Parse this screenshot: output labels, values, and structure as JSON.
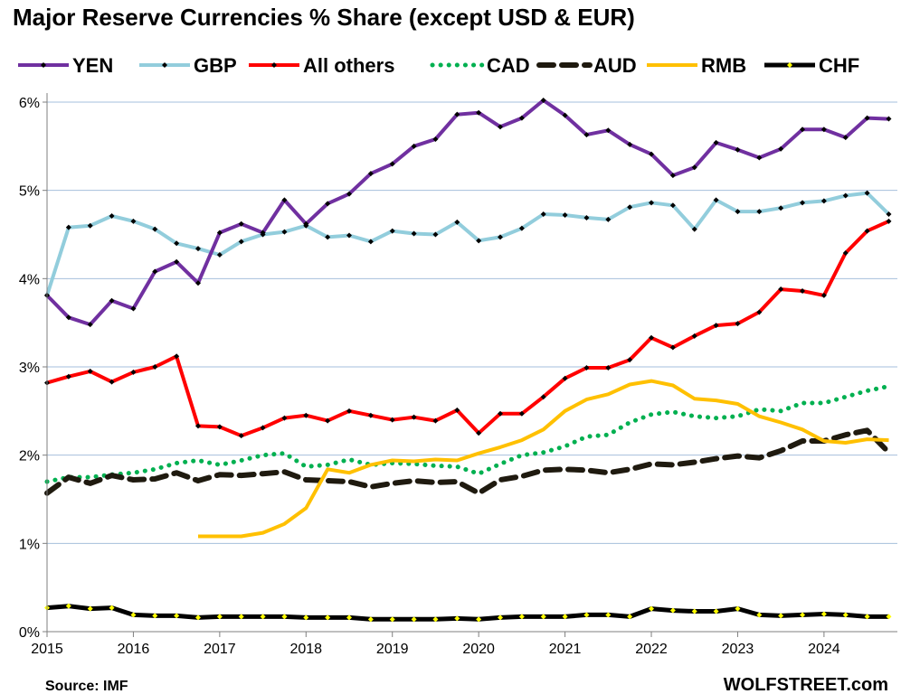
{
  "chart_data": {
    "type": "line",
    "title": "Major Reserve Currencies % Share (except USD & EUR)",
    "source": "Source: IMF",
    "brand": "WOLFSTREET.com",
    "ylim": [
      0,
      6
    ],
    "xlim": [
      2015,
      2024.85
    ],
    "y_ticks": [
      0,
      1,
      2,
      3,
      4,
      5,
      6
    ],
    "y_tick_labels": [
      "0%",
      "1%",
      "2%",
      "3%",
      "4%",
      "5%",
      "6%"
    ],
    "x_ticks": [
      2015,
      2016,
      2017,
      2018,
      2019,
      2020,
      2021,
      2022,
      2023,
      2024
    ],
    "x_tick_labels": [
      "2015",
      "2016",
      "2017",
      "2018",
      "2019",
      "2020",
      "2021",
      "2022",
      "2023",
      "2024"
    ],
    "grid": true,
    "legend_position": "top",
    "series": [
      {
        "name": "YEN",
        "color": "#7030A0",
        "style": "solid-marker",
        "x": [
          2015.0,
          2015.25,
          2015.5,
          2015.75,
          2016.0,
          2016.25,
          2016.5,
          2016.75,
          2017.0,
          2017.25,
          2017.5,
          2017.75,
          2018.0,
          2018.25,
          2018.5,
          2018.75,
          2019.0,
          2019.25,
          2019.5,
          2019.75,
          2020.0,
          2020.25,
          2020.5,
          2020.75,
          2021.0,
          2021.25,
          2021.5,
          2021.75,
          2022.0,
          2022.25,
          2022.5,
          2022.75,
          2023.0,
          2023.25,
          2023.5,
          2023.75,
          2024.0,
          2024.25,
          2024.5,
          2024.75
        ],
        "y": [
          3.81,
          3.56,
          3.48,
          3.75,
          3.66,
          4.08,
          4.19,
          3.95,
          4.52,
          4.62,
          4.52,
          4.89,
          4.62,
          4.85,
          4.96,
          5.19,
          5.3,
          5.5,
          5.58,
          5.86,
          5.88,
          5.72,
          5.82,
          6.02,
          5.85,
          5.63,
          5.68,
          5.52,
          5.41,
          5.17,
          5.26,
          5.54,
          5.46,
          5.37,
          5.47,
          5.69,
          5.69,
          5.6,
          5.82,
          5.81
        ]
      },
      {
        "name": "GBP",
        "color": "#92CDDC",
        "style": "solid-marker",
        "x": [
          2015.0,
          2015.25,
          2015.5,
          2015.75,
          2016.0,
          2016.25,
          2016.5,
          2016.75,
          2017.0,
          2017.25,
          2017.5,
          2017.75,
          2018.0,
          2018.25,
          2018.5,
          2018.75,
          2019.0,
          2019.25,
          2019.5,
          2019.75,
          2020.0,
          2020.25,
          2020.5,
          2020.75,
          2021.0,
          2021.25,
          2021.5,
          2021.75,
          2022.0,
          2022.25,
          2022.5,
          2022.75,
          2023.0,
          2023.25,
          2023.5,
          2023.75,
          2024.0,
          2024.25,
          2024.5,
          2024.75
        ],
        "y": [
          3.81,
          4.58,
          4.6,
          4.71,
          4.65,
          4.56,
          4.4,
          4.34,
          4.27,
          4.42,
          4.5,
          4.53,
          4.6,
          4.47,
          4.49,
          4.42,
          4.54,
          4.51,
          4.5,
          4.64,
          4.43,
          4.47,
          4.57,
          4.73,
          4.72,
          4.69,
          4.67,
          4.81,
          4.86,
          4.83,
          4.56,
          4.89,
          4.76,
          4.76,
          4.8,
          4.86,
          4.88,
          4.94,
          4.97,
          4.73
        ]
      },
      {
        "name": "All others",
        "color": "#FF0000",
        "style": "solid-marker",
        "x": [
          2015.0,
          2015.25,
          2015.5,
          2015.75,
          2016.0,
          2016.25,
          2016.5,
          2016.75,
          2017.0,
          2017.25,
          2017.5,
          2017.75,
          2018.0,
          2018.25,
          2018.5,
          2018.75,
          2019.0,
          2019.25,
          2019.5,
          2019.75,
          2020.0,
          2020.25,
          2020.5,
          2020.75,
          2021.0,
          2021.25,
          2021.5,
          2021.75,
          2022.0,
          2022.25,
          2022.5,
          2022.75,
          2023.0,
          2023.25,
          2023.5,
          2023.75,
          2024.0,
          2024.25,
          2024.5,
          2024.75
        ],
        "y": [
          2.82,
          2.89,
          2.95,
          2.83,
          2.94,
          3.0,
          3.12,
          2.33,
          2.32,
          2.22,
          2.31,
          2.42,
          2.45,
          2.39,
          2.5,
          2.45,
          2.4,
          2.43,
          2.39,
          2.51,
          2.25,
          2.47,
          2.47,
          2.66,
          2.87,
          2.99,
          2.99,
          3.08,
          3.33,
          3.22,
          3.35,
          3.47,
          3.49,
          3.62,
          3.88,
          3.86,
          3.81,
          4.29,
          4.54,
          4.65
        ]
      },
      {
        "name": "CAD",
        "color": "#00B050",
        "style": "dotted",
        "x": [
          2015.0,
          2015.25,
          2015.5,
          2015.75,
          2016.0,
          2016.25,
          2016.5,
          2016.75,
          2017.0,
          2017.25,
          2017.5,
          2017.75,
          2018.0,
          2018.25,
          2018.5,
          2018.75,
          2019.0,
          2019.25,
          2019.5,
          2019.75,
          2020.0,
          2020.25,
          2020.5,
          2020.75,
          2021.0,
          2021.25,
          2021.5,
          2021.75,
          2022.0,
          2022.25,
          2022.5,
          2022.75,
          2023.0,
          2023.25,
          2023.5,
          2023.75,
          2024.0,
          2024.25,
          2024.5,
          2024.75
        ],
        "y": [
          1.7,
          1.75,
          1.75,
          1.78,
          1.8,
          1.84,
          1.91,
          1.94,
          1.89,
          1.94,
          2.0,
          2.02,
          1.87,
          1.89,
          1.95,
          1.89,
          1.91,
          1.9,
          1.88,
          1.87,
          1.79,
          1.9,
          2.0,
          2.03,
          2.1,
          2.21,
          2.23,
          2.37,
          2.46,
          2.49,
          2.44,
          2.42,
          2.44,
          2.52,
          2.5,
          2.59,
          2.59,
          2.66,
          2.73,
          2.78
        ]
      },
      {
        "name": "AUD",
        "color": "#1F1A0F",
        "style": "dashed",
        "x": [
          2015.0,
          2015.25,
          2015.5,
          2015.75,
          2016.0,
          2016.25,
          2016.5,
          2016.75,
          2017.0,
          2017.25,
          2017.5,
          2017.75,
          2018.0,
          2018.25,
          2018.5,
          2018.75,
          2019.0,
          2019.25,
          2019.5,
          2019.75,
          2020.0,
          2020.25,
          2020.5,
          2020.75,
          2021.0,
          2021.25,
          2021.5,
          2021.75,
          2022.0,
          2022.25,
          2022.5,
          2022.75,
          2023.0,
          2023.25,
          2023.5,
          2023.75,
          2024.0,
          2024.25,
          2024.5,
          2024.75
        ],
        "y": [
          1.57,
          1.75,
          1.68,
          1.77,
          1.72,
          1.73,
          1.8,
          1.71,
          1.78,
          1.77,
          1.79,
          1.81,
          1.72,
          1.71,
          1.7,
          1.64,
          1.68,
          1.71,
          1.69,
          1.7,
          1.57,
          1.72,
          1.76,
          1.83,
          1.84,
          1.83,
          1.8,
          1.84,
          1.9,
          1.89,
          1.92,
          1.96,
          1.99,
          1.97,
          2.05,
          2.16,
          2.16,
          2.23,
          2.28,
          2.03
        ]
      },
      {
        "name": "RMB",
        "color": "#FFC000",
        "style": "solid",
        "x": [
          2016.75,
          2017.0,
          2017.25,
          2017.5,
          2017.75,
          2018.0,
          2018.25,
          2018.5,
          2018.75,
          2019.0,
          2019.25,
          2019.5,
          2019.75,
          2020.0,
          2020.25,
          2020.5,
          2020.75,
          2021.0,
          2021.25,
          2021.5,
          2021.75,
          2022.0,
          2022.25,
          2022.5,
          2022.75,
          2023.0,
          2023.25,
          2023.5,
          2023.75,
          2024.0,
          2024.25,
          2024.5,
          2024.75
        ],
        "y": [
          1.08,
          1.08,
          1.08,
          1.12,
          1.22,
          1.4,
          1.84,
          1.8,
          1.89,
          1.94,
          1.93,
          1.95,
          1.94,
          2.02,
          2.09,
          2.17,
          2.29,
          2.5,
          2.63,
          2.69,
          2.8,
          2.84,
          2.79,
          2.64,
          2.62,
          2.58,
          2.44,
          2.37,
          2.29,
          2.16,
          2.14,
          2.18,
          2.17
        ]
      },
      {
        "name": "CHF",
        "color": "#000000",
        "style": "solid-yellow-marker",
        "x": [
          2015.0,
          2015.25,
          2015.5,
          2015.75,
          2016.0,
          2016.25,
          2016.5,
          2016.75,
          2017.0,
          2017.25,
          2017.5,
          2017.75,
          2018.0,
          2018.25,
          2018.5,
          2018.75,
          2019.0,
          2019.25,
          2019.5,
          2019.75,
          2020.0,
          2020.25,
          2020.5,
          2020.75,
          2021.0,
          2021.25,
          2021.5,
          2021.75,
          2022.0,
          2022.25,
          2022.5,
          2022.75,
          2023.0,
          2023.25,
          2023.5,
          2023.75,
          2024.0,
          2024.25,
          2024.5,
          2024.75
        ],
        "y": [
          0.27,
          0.29,
          0.26,
          0.27,
          0.19,
          0.18,
          0.18,
          0.16,
          0.17,
          0.17,
          0.17,
          0.17,
          0.16,
          0.16,
          0.16,
          0.14,
          0.14,
          0.14,
          0.14,
          0.15,
          0.14,
          0.16,
          0.17,
          0.17,
          0.17,
          0.19,
          0.19,
          0.17,
          0.26,
          0.24,
          0.23,
          0.23,
          0.26,
          0.19,
          0.18,
          0.19,
          0.2,
          0.19,
          0.17,
          0.17
        ]
      }
    ]
  }
}
